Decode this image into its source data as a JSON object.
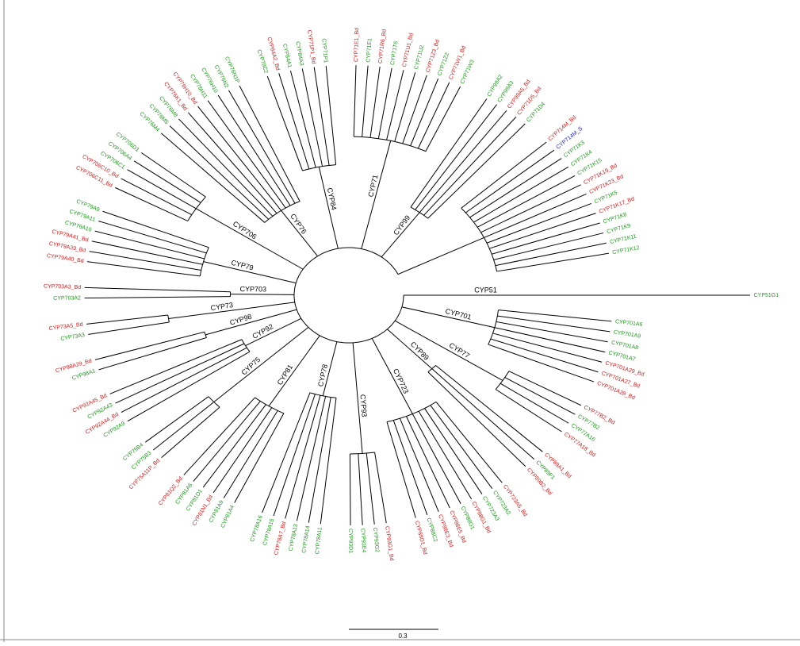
{
  "tree": {
    "clades": [
      {
        "label": "CYP51",
        "leaves": [
          {
            "label": "CYP51G1",
            "color": "#1a9a1a"
          }
        ]
      },
      {
        "label": "CYP701",
        "leaves": [
          {
            "label": "CYP701A6",
            "color": "#1a9a1a"
          },
          {
            "label": "CYP701A9",
            "color": "#1a9a1a"
          },
          {
            "label": "CYP701A8",
            "color": "#1a9a1a"
          },
          {
            "label": "CYP701A7",
            "color": "#1a9a1a"
          },
          {
            "label": "CYP701A29_Bd",
            "color": "#d41a1a"
          },
          {
            "label": "CYP701A27_Bd",
            "color": "#d41a1a"
          },
          {
            "label": "CYP701A28_Bd",
            "color": "#d41a1a"
          }
        ]
      },
      {
        "label": "CYP77",
        "leaves": [
          {
            "label": "CYP77B2_Bd",
            "color": "#d41a1a"
          },
          {
            "label": "CYP77B2",
            "color": "#1a9a1a"
          },
          {
            "label": "CYP77A16",
            "color": "#1a9a1a"
          },
          {
            "label": "CYP77A18_Bd",
            "color": "#d41a1a"
          }
        ]
      },
      {
        "label": "CYP89",
        "leaves": [
          {
            "label": "CYP89A1_Bd",
            "color": "#d41a1a"
          },
          {
            "label": "CYP89F1",
            "color": "#1a9a1a"
          },
          {
            "label": "CYP89B2_Bd",
            "color": "#d41a1a"
          }
        ]
      },
      {
        "label": "CYP723",
        "leaves": [
          {
            "label": "CYP723A5_Bd",
            "color": "#d41a1a"
          },
          {
            "label": "CYP723A2",
            "color": "#1a9a1a"
          },
          {
            "label": "CYP723A3",
            "color": "#1a9a1a"
          },
          {
            "label": "CYP88G1_Bd",
            "color": "#d41a1a"
          },
          {
            "label": "CYP88G1",
            "color": "#1a9a1a"
          },
          {
            "label": "CYP88E5_Bd",
            "color": "#d41a1a"
          },
          {
            "label": "CYP88E3_Bd",
            "color": "#d41a1a"
          },
          {
            "label": "CYP88C2",
            "color": "#1a9a1a"
          },
          {
            "label": "CYP88D1_Bd",
            "color": "#d41a1a"
          }
        ]
      },
      {
        "label": "CYP93",
        "leaves": [
          {
            "label": "CYP93G1_Bd",
            "color": "#d41a1a"
          },
          {
            "label": "CYP93G2",
            "color": "#1a9a1a"
          },
          {
            "label": "CYP93E4",
            "color": "#1a9a1a"
          },
          {
            "label": "CYP93D1",
            "color": "#1a9a1a"
          }
        ]
      },
      {
        "label": "CYP78",
        "leaves": [
          {
            "label": "CYP78A11",
            "color": "#1a9a1a"
          },
          {
            "label": "CYP78A14",
            "color": "#1a9a1a"
          },
          {
            "label": "CYP78A13",
            "color": "#1a9a1a"
          },
          {
            "label": "CYP78A7_Bd",
            "color": "#d41a1a"
          },
          {
            "label": "CYP78A15",
            "color": "#1a9a1a"
          },
          {
            "label": "CYP78A16",
            "color": "#1a9a1a"
          }
        ]
      },
      {
        "label": "CYP81",
        "leaves": [
          {
            "label": "CYP81A4",
            "color": "#1a9a1a"
          },
          {
            "label": "CYP81A9",
            "color": "#1a9a1a"
          },
          {
            "label": "CYP81N1_Bd",
            "color": "#d41a1a"
          },
          {
            "label": "CYP81D1",
            "color": "#1a9a1a"
          },
          {
            "label": "CYP81A6",
            "color": "#1a9a1a"
          },
          {
            "label": "CYP81Q2_Bd",
            "color": "#d41a1a"
          }
        ]
      },
      {
        "label": "CYP75",
        "leaves": [
          {
            "label": "CYP75A11P_Bd",
            "color": "#d41a1a"
          },
          {
            "label": "CYP75B3",
            "color": "#1a9a1a"
          },
          {
            "label": "CYP75B4",
            "color": "#1a9a1a"
          }
        ]
      },
      {
        "label": "CYP92",
        "leaves": [
          {
            "label": "CYP92A9",
            "color": "#1a9a1a"
          },
          {
            "label": "CYP92A44_Bd",
            "color": "#d41a1a"
          },
          {
            "label": "CYP92A43",
            "color": "#1a9a1a"
          },
          {
            "label": "CYP92A45_Bd",
            "color": "#d41a1a"
          }
        ]
      },
      {
        "label": "CYP98",
        "leaves": [
          {
            "label": "CYP98A1",
            "color": "#1a9a1a"
          },
          {
            "label": "CYP98A29_Bd",
            "color": "#d41a1a"
          }
        ]
      },
      {
        "label": "CYP73",
        "leaves": [
          {
            "label": "CYP73A3",
            "color": "#1a9a1a"
          },
          {
            "label": "CYP73A5_Bd",
            "color": "#d41a1a"
          }
        ]
      },
      {
        "label": "CYP703",
        "leaves": [
          {
            "label": "CYP703A2",
            "color": "#1a9a1a"
          },
          {
            "label": "CYP703A3_Bd",
            "color": "#d41a1a"
          }
        ]
      },
      {
        "label": "CYP79",
        "leaves": [
          {
            "label": "CYP79A40_Bd",
            "color": "#d41a1a"
          },
          {
            "label": "CYP79A39_Bd",
            "color": "#d41a1a"
          },
          {
            "label": "CYP79A41_Bd",
            "color": "#d41a1a"
          },
          {
            "label": "CYP79A10",
            "color": "#1a9a1a"
          },
          {
            "label": "CYP79A11",
            "color": "#1a9a1a"
          },
          {
            "label": "CYP79A9",
            "color": "#1a9a1a"
          }
        ]
      },
      {
        "label": "CYP706",
        "leaves": [
          {
            "label": "CYP706C11_Bd",
            "color": "#d41a1a"
          },
          {
            "label": "CYP706C10_Bd",
            "color": "#d41a1a"
          },
          {
            "label": "CYP706C1",
            "color": "#1a9a1a"
          },
          {
            "label": "CYP706A4",
            "color": "#1a9a1a"
          },
          {
            "label": "CYP706D1",
            "color": "#1a9a1a"
          }
        ]
      },
      {
        "label": "CYP76",
        "leaves": [
          {
            "label": "CYP76M4",
            "color": "#1a9a1a"
          },
          {
            "label": "CYP76M5",
            "color": "#1a9a1a"
          },
          {
            "label": "CYP76M8",
            "color": "#1a9a1a"
          },
          {
            "label": "CYP76K1_Bd",
            "color": "#d41a1a"
          },
          {
            "label": "CYP76H10_Bd",
            "color": "#d41a1a"
          },
          {
            "label": "CYP76H11",
            "color": "#1a9a1a"
          },
          {
            "label": "CYP76H10",
            "color": "#1a9a1a"
          },
          {
            "label": "CYP76N2",
            "color": "#1a9a1a"
          },
          {
            "label": "CYP76N1P",
            "color": "#1a9a1a"
          }
        ]
      },
      {
        "label": "CYP84",
        "leaves": [
          {
            "label": "CYP78C2",
            "color": "#1a9a1a"
          },
          {
            "label": "CYP84A2_Bd",
            "color": "#d41a1a"
          },
          {
            "label": "CYP84A1",
            "color": "#1a9a1a"
          },
          {
            "label": "CYP84A3",
            "color": "#1a9a1a"
          },
          {
            "label": "CYP71P1_Bd",
            "color": "#d41a1a"
          },
          {
            "label": "CYP71P1",
            "color": "#1a9a1a"
          }
        ]
      },
      {
        "label": "CYP71",
        "leaves": [
          {
            "label": "CYP71E1_Bd",
            "color": "#d41a1a"
          },
          {
            "label": "CYP71E1",
            "color": "#1a9a1a"
          },
          {
            "label": "CYP71R6_Bd",
            "color": "#d41a1a"
          },
          {
            "label": "CYP71T6",
            "color": "#1a9a1a"
          },
          {
            "label": "CYP71U1_Bd",
            "color": "#d41a1a"
          },
          {
            "label": "CYP71U2",
            "color": "#1a9a1a"
          },
          {
            "label": "CYP71Z3_Bd",
            "color": "#d41a1a"
          },
          {
            "label": "CYP71Z2",
            "color": "#1a9a1a"
          },
          {
            "label": "CYP71W1_Bd",
            "color": "#d41a1a"
          },
          {
            "label": "CYP71W3",
            "color": "#1a9a1a"
          }
        ]
      },
      {
        "label": "CYP99",
        "leaves": [
          {
            "label": "CYP99A2",
            "color": "#1a9a1a"
          },
          {
            "label": "CYP99A3",
            "color": "#1a9a1a"
          },
          {
            "label": "CYP99A5_Bd",
            "color": "#d41a1a"
          },
          {
            "label": "CYP71D5_Bd",
            "color": "#d41a1a"
          },
          {
            "label": "CYP71D4",
            "color": "#1a9a1a"
          }
        ]
      },
      {
        "leaves": [
          {
            "label": "CYP714M_Bd",
            "color": "#d41a1a"
          },
          {
            "label": "CYP714M_S",
            "color": "#1a1ad4"
          },
          {
            "label": "CYP71K3",
            "color": "#1a9a1a"
          },
          {
            "label": "CYP71K4",
            "color": "#1a9a1a"
          },
          {
            "label": "CYP71K15",
            "color": "#1a9a1a"
          },
          {
            "label": "CYP71K19_Bd",
            "color": "#d41a1a"
          },
          {
            "label": "CYP71K23_Bd",
            "color": "#d41a1a"
          },
          {
            "label": "CYP71K5",
            "color": "#1a9a1a"
          },
          {
            "label": "CYP71K17_Bd",
            "color": "#d41a1a"
          },
          {
            "label": "CYP71K8",
            "color": "#1a9a1a"
          },
          {
            "label": "CYP71K9",
            "color": "#1a9a1a"
          },
          {
            "label": "CYP71K11",
            "color": "#1a9a1a"
          },
          {
            "label": "CYP71K12",
            "color": "#1a9a1a"
          }
        ]
      }
    ],
    "scale_bar": {
      "label": "0.3"
    }
  }
}
